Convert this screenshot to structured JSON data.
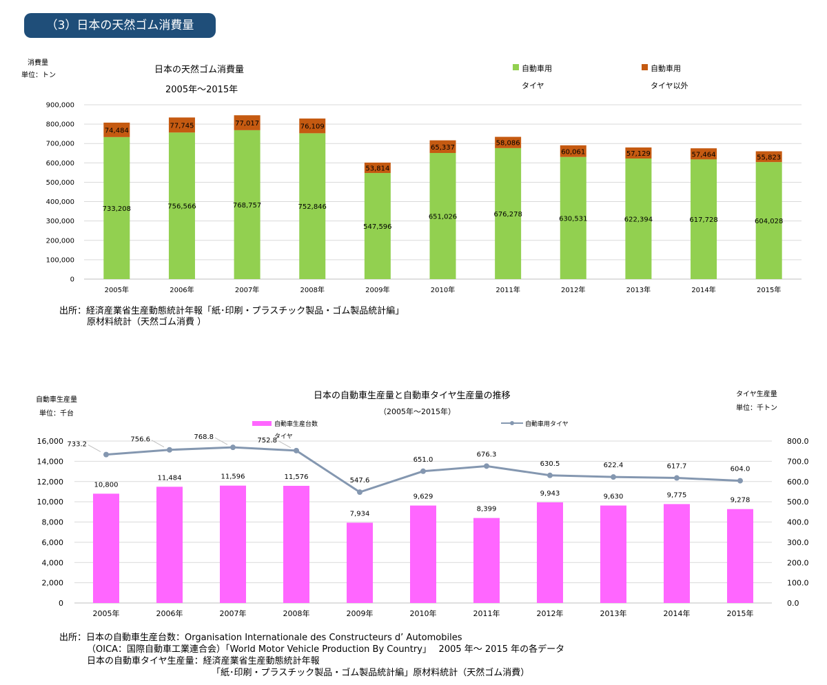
{
  "section_title": "（3）日本の天然ゴム消費量",
  "chart1": {
    "ylabel": "消費量",
    "unit": "単位：トン",
    "title_line1": "日本の天然ゴム消費量",
    "title_line2": "2005年〜2015年",
    "legend1_line1": "自動車用",
    "legend1_line2": "タイヤ",
    "legend2_line1": "自動車用",
    "legend2_line2": "タイヤ以外",
    "yticks": [
      "0",
      "100,000",
      "200,000",
      "300,000",
      "400,000",
      "500,000",
      "600,000",
      "700,000",
      "800,000",
      "900,000"
    ],
    "source_line1": "出所：経済産業省生産動態統計年報「紙･印刷・プラスチック製品・ゴム製品統計編」",
    "source_line2": "原材料統計（天然ゴム消費 ）"
  },
  "chart2": {
    "ylabel_left": "自動車生産量",
    "unit_left": "単位：千台",
    "ylabel_right": "タイヤ生産量",
    "unit_right": "単位：千トン",
    "title_line1": "日本の自動車生産量と自動車タイヤ生産量の推移",
    "title_line2": "（2005年〜2015年）",
    "legend_bar": "自動車生産台数",
    "legend_line": "自動車用タイヤ",
    "yticks_left": [
      "0",
      "2,000",
      "4,000",
      "6,000",
      "8,000",
      "10,000",
      "12,000",
      "14,000",
      "16,000"
    ],
    "yticks_right": [
      "0.0",
      "100.0",
      "200.0",
      "300.0",
      "400.0",
      "500.0",
      "600.0",
      "700.0",
      "800.0"
    ],
    "source_line1": "出所：日本の自動車生産台数：Organisation Internationale des Constructeurs d’ Automobiles",
    "source_line2": "（OICA：国際自動車工業連合会）「World Motor Vehicle Production By Country」　 2005 年〜 2015 年の各データ",
    "source_line3": "日本の自動車タイヤ生産量：経済産業省生産動態統計年報",
    "source_line4": "「紙･印刷・プラスチック製品・ゴム製品統計編」原材料統計（天然ゴム消費）"
  },
  "colors": {
    "badge": "#1f4e79",
    "tire": "#92d050",
    "non_tire": "#c55a11",
    "bar2": "#ff66ff",
    "line2": "#8497b0"
  },
  "chart_data": [
    {
      "type": "bar",
      "stacked": true,
      "title": "日本の天然ゴム消費量",
      "subtitle": "2005年〜2015年",
      "ylabel": "消費量",
      "unit": "トン",
      "categories": [
        "2005年",
        "2006年",
        "2007年",
        "2008年",
        "2009年",
        "2010年",
        "2011年",
        "2012年",
        "2013年",
        "2014年",
        "2015年"
      ],
      "series": [
        {
          "name": "自動車用タイヤ",
          "values": [
            733208,
            756566,
            768757,
            752846,
            547596,
            651026,
            676278,
            630531,
            622394,
            617728,
            604028
          ]
        },
        {
          "name": "自動車用タイヤ以外",
          "values": [
            74484,
            77745,
            77017,
            76109,
            53814,
            65337,
            58086,
            60061,
            57129,
            57464,
            55823
          ]
        }
      ],
      "ylim": [
        0,
        900000
      ],
      "legend": "top-right",
      "grid": true
    },
    {
      "type": "bar",
      "combo": "bar+line",
      "title": "日本の自動車生産量と自動車タイヤ生産量の推移",
      "subtitle": "（2005年〜2015年）",
      "categories": [
        "2005年",
        "2006年",
        "2007年",
        "2008年",
        "2009年",
        "2010年",
        "2011年",
        "2012年",
        "2013年",
        "2014年",
        "2015年"
      ],
      "series": [
        {
          "name": "自動車生産台数",
          "axis": "left",
          "unit": "千台",
          "values": [
            10800,
            11484,
            11596,
            11576,
            7934,
            9629,
            8399,
            9943,
            9630,
            9775,
            9278
          ]
        },
        {
          "name": "自動車用タイヤ",
          "axis": "right",
          "unit": "千トン",
          "type": "line",
          "values": [
            733.2,
            756.6,
            768.8,
            752.8,
            547.6,
            651.0,
            676.3,
            630.5,
            622.4,
            617.7,
            604.0
          ]
        }
      ],
      "ylim_left": [
        0,
        16000
      ],
      "ylim_right": [
        0,
        800
      ],
      "legend": "top",
      "grid": true
    }
  ]
}
